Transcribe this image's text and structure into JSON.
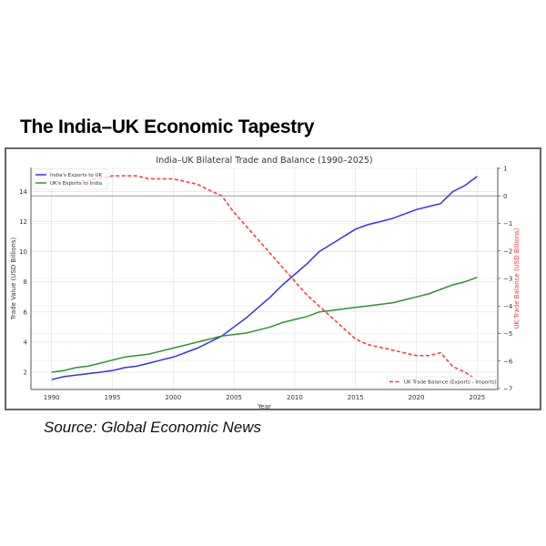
{
  "headline": "The India–UK Economic Tapestry",
  "source": "Source: Global Economic News",
  "chart_data": {
    "type": "line",
    "title": "India–UK Bilateral Trade and Balance (1990–2025)",
    "xlabel": "Year",
    "ylabel": "Trade Value (USD Billions)",
    "y2label": "UK Trade Balance (USD Billions)",
    "x": [
      1990,
      1991,
      1992,
      1993,
      1994,
      1995,
      1996,
      1997,
      1998,
      1999,
      2000,
      2001,
      2002,
      2003,
      2004,
      2005,
      2006,
      2007,
      2008,
      2009,
      2010,
      2011,
      2012,
      2013,
      2014,
      2015,
      2016,
      2017,
      2018,
      2019,
      2020,
      2021,
      2022,
      2023,
      2024,
      2025
    ],
    "xticks": [
      "1990",
      "1995",
      "2000",
      "2005",
      "2010",
      "2015",
      "2020",
      "2025"
    ],
    "yticks": [
      "2",
      "4",
      "6",
      "8",
      "10",
      "12",
      "14"
    ],
    "y2ticks": [
      "1",
      "0",
      "−1",
      "−2",
      "−3",
      "−4",
      "−5",
      "−6",
      "−7"
    ],
    "xlim": [
      1988.3,
      2026.7
    ],
    "ylim": [
      0.85,
      15.6
    ],
    "y2lim": [
      -7,
      1
    ],
    "grid": true,
    "series": [
      {
        "name": "India's Exports to UK",
        "axis": "left",
        "color": "#3333ee",
        "style": "solid",
        "values": [
          1.5,
          1.7,
          1.8,
          1.9,
          2.0,
          2.1,
          2.3,
          2.4,
          2.6,
          2.8,
          3.0,
          3.3,
          3.6,
          4.0,
          4.4,
          5.0,
          5.6,
          6.3,
          7.0,
          7.8,
          8.5,
          9.2,
          10.0,
          10.5,
          11.0,
          11.5,
          11.8,
          12.0,
          12.2,
          12.5,
          12.8,
          13.0,
          13.2,
          14.0,
          14.4,
          15.0
        ]
      },
      {
        "name": "UK's Exports to India",
        "axis": "left",
        "color": "#2e922e",
        "style": "solid",
        "values": [
          2.0,
          2.1,
          2.3,
          2.4,
          2.6,
          2.8,
          3.0,
          3.1,
          3.2,
          3.4,
          3.6,
          3.8,
          4.0,
          4.2,
          4.4,
          4.5,
          4.6,
          4.8,
          5.0,
          5.3,
          5.5,
          5.7,
          6.0,
          6.1,
          6.2,
          6.3,
          6.4,
          6.5,
          6.6,
          6.8,
          7.0,
          7.2,
          7.5,
          7.8,
          8.0,
          8.3
        ]
      },
      {
        "name": "UK Trade Balance (Exports - Imports)",
        "axis": "right",
        "color": "#ff3333",
        "style": "dashed",
        "values": [
          0.5,
          0.45,
          0.55,
          0.55,
          0.65,
          0.73,
          0.73,
          0.73,
          0.62,
          0.62,
          0.62,
          0.52,
          0.42,
          0.2,
          0.0,
          -0.6,
          -1.1,
          -1.6,
          -2.1,
          -2.6,
          -3.1,
          -3.6,
          -4.0,
          -4.4,
          -4.8,
          -5.2,
          -5.4,
          -5.5,
          -5.6,
          -5.7,
          -5.8,
          -5.8,
          -5.7,
          -6.2,
          -6.4,
          -6.7
        ]
      }
    ],
    "legend": [
      "top-left",
      "bottom-right"
    ]
  }
}
